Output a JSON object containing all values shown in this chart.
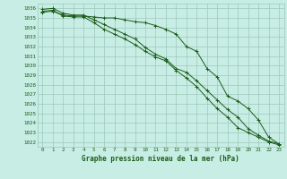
{
  "title": "Graphe pression niveau de la mer (hPa)",
  "bg_color": "#c8ede4",
  "grid_color": "#9ec8bc",
  "line_color": "#1a5c1a",
  "x": [
    0,
    1,
    2,
    3,
    4,
    5,
    6,
    7,
    8,
    9,
    10,
    11,
    12,
    13,
    14,
    15,
    16,
    17,
    18,
    19,
    20,
    21,
    22,
    23
  ],
  "line1": [
    1035.6,
    1035.7,
    1035.3,
    1035.2,
    1035.2,
    1035.1,
    1035.0,
    1035.0,
    1034.8,
    1034.6,
    1034.5,
    1034.2,
    1033.8,
    1033.3,
    1032.0,
    1031.5,
    1029.7,
    1028.8,
    1026.8,
    1026.3,
    1025.5,
    1024.3,
    1022.5,
    1021.8
  ],
  "line2": [
    1035.7,
    1035.8,
    1035.2,
    1035.1,
    1035.1,
    1034.5,
    1033.8,
    1033.3,
    1032.8,
    1032.2,
    1031.5,
    1030.9,
    1030.5,
    1029.5,
    1028.7,
    1027.8,
    1026.6,
    1025.5,
    1024.6,
    1023.5,
    1023.0,
    1022.5,
    1022.0,
    1021.7
  ],
  "line3": [
    1035.9,
    1036.0,
    1035.5,
    1035.3,
    1035.3,
    1034.8,
    1034.3,
    1033.8,
    1033.3,
    1032.8,
    1031.9,
    1031.2,
    1030.7,
    1029.7,
    1029.3,
    1028.4,
    1027.4,
    1026.4,
    1025.4,
    1024.6,
    1023.4,
    1022.7,
    1022.1,
    1021.8
  ],
  "ylim_min": 1021.5,
  "ylim_max": 1036.5,
  "yticks": [
    1022,
    1023,
    1024,
    1025,
    1026,
    1027,
    1028,
    1029,
    1030,
    1031,
    1032,
    1033,
    1034,
    1035,
    1036
  ],
  "xlim_min": -0.5,
  "xlim_max": 23.5
}
